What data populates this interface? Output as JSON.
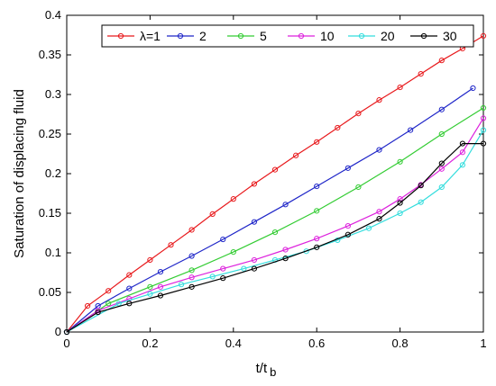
{
  "chart_data": {
    "type": "line",
    "xlabel": "t/t",
    "xlabel_sub": "b",
    "ylabel": "Saturation of displacing fluid",
    "xlim": [
      0,
      1
    ],
    "ylim": [
      0,
      0.4
    ],
    "x_ticks": [
      "0",
      "0.2",
      "0.4",
      "0.6",
      "0.8",
      "1"
    ],
    "y_ticks": [
      "0",
      "0.05",
      "0.1",
      "0.15",
      "0.2",
      "0.25",
      "0.3",
      "0.35",
      "0.4"
    ],
    "grid": false,
    "legend_position": "top",
    "marker": "open-circle",
    "series": [
      {
        "name": "λ=1",
        "color": "#e8191c",
        "x": [
          0,
          0.05,
          0.1,
          0.15,
          0.2,
          0.25,
          0.3,
          0.35,
          0.4,
          0.45,
          0.5,
          0.55,
          0.6,
          0.65,
          0.7,
          0.75,
          0.8,
          0.85,
          0.9,
          0.95,
          1.0
        ],
        "y": [
          0,
          0.033,
          0.052,
          0.072,
          0.091,
          0.11,
          0.129,
          0.149,
          0.168,
          0.187,
          0.205,
          0.223,
          0.24,
          0.258,
          0.276,
          0.293,
          0.309,
          0.326,
          0.343,
          0.358,
          0.374
        ]
      },
      {
        "name": "2",
        "color": "#1f26c8",
        "x": [
          0,
          0.075,
          0.15,
          0.225,
          0.3,
          0.375,
          0.45,
          0.525,
          0.6,
          0.675,
          0.75,
          0.825,
          0.9,
          0.975
        ],
        "y": [
          0,
          0.033,
          0.055,
          0.076,
          0.096,
          0.117,
          0.139,
          0.161,
          0.184,
          0.207,
          0.23,
          0.255,
          0.281,
          0.308
        ]
      },
      {
        "name": "5",
        "color": "#33cc33",
        "x": [
          0,
          0.1,
          0.2,
          0.3,
          0.4,
          0.5,
          0.6,
          0.7,
          0.8,
          0.9,
          1.0
        ],
        "y": [
          0,
          0.036,
          0.057,
          0.078,
          0.101,
          0.126,
          0.153,
          0.183,
          0.215,
          0.25,
          0.283
        ]
      },
      {
        "name": "10",
        "color": "#dd22dd",
        "x": [
          0,
          0.075,
          0.15,
          0.225,
          0.3,
          0.375,
          0.45,
          0.525,
          0.6,
          0.675,
          0.75,
          0.8,
          0.85,
          0.9,
          0.95,
          1.0
        ],
        "y": [
          0,
          0.027,
          0.042,
          0.057,
          0.069,
          0.08,
          0.091,
          0.104,
          0.118,
          0.134,
          0.152,
          0.168,
          0.186,
          0.206,
          0.227,
          0.27
        ]
      },
      {
        "name": "20",
        "color": "#33dddd",
        "x": [
          0,
          0.125,
          0.2,
          0.275,
          0.35,
          0.425,
          0.5,
          0.575,
          0.65,
          0.725,
          0.8,
          0.85,
          0.9,
          0.95,
          1.0
        ],
        "y": [
          0,
          0.036,
          0.048,
          0.06,
          0.07,
          0.08,
          0.091,
          0.102,
          0.116,
          0.131,
          0.15,
          0.164,
          0.183,
          0.211,
          0.255
        ]
      },
      {
        "name": "30",
        "color": "#000000",
        "x": [
          0,
          0.075,
          0.15,
          0.225,
          0.3,
          0.375,
          0.45,
          0.525,
          0.6,
          0.675,
          0.75,
          0.8,
          0.85,
          0.9,
          0.95,
          1.0
        ],
        "y": [
          0,
          0.025,
          0.036,
          0.046,
          0.057,
          0.068,
          0.08,
          0.093,
          0.107,
          0.123,
          0.143,
          0.163,
          0.185,
          0.213,
          0.238,
          0.238
        ]
      }
    ]
  }
}
